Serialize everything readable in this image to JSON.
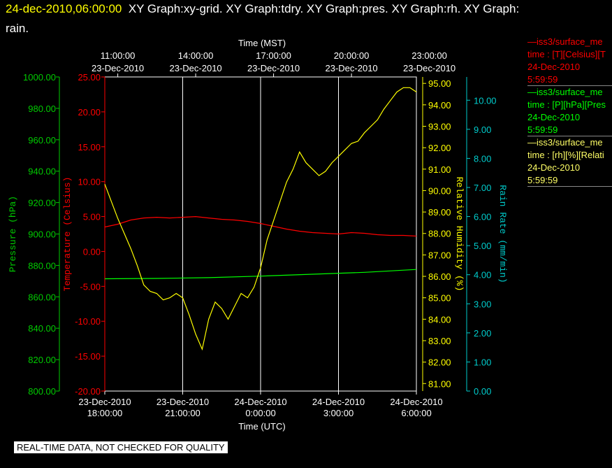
{
  "header": {
    "timestamp": "24-dec-2010,06:00:00",
    "graphs_line1": "XY Graph:xy-grid.  XY Graph:tdry.  XY Graph:pres.  XY Graph:rh.  XY Graph:",
    "graphs_line2": "rain."
  },
  "legend": [
    {
      "line1": "—iss3/surface_me",
      "line2": "time : [T][Celsius][T",
      "line3": "24-Dec-2010",
      "line4": "5:59:59",
      "color": "#ff0000"
    },
    {
      "line1": "—iss3/surface_me",
      "line2": "time : [P][hPa][Pres",
      "line3": "24-Dec-2010",
      "line4": "5:59:59",
      "color": "#00ff00"
    },
    {
      "line1": "—iss3/surface_me",
      "line2": "time : [rh][%][Relati",
      "line3": "24-Dec-2010",
      "line4": "5:59:59",
      "color": "#ffff00"
    }
  ],
  "footer_note": "REAL-TIME DATA, NOT CHECKED FOR QUALITY",
  "chart_data": {
    "type": "line",
    "title": "",
    "xlabel_top": "Time (MST)",
    "xlabel_bottom": "Time (UTC)",
    "x_unit": "hours since 23-Dec-2010 18:00 UTC",
    "xlim": [
      0,
      12
    ],
    "x_ticks_top": [
      {
        "x": 0.5,
        "time": "11:00:00",
        "date": "23-Dec-2010"
      },
      {
        "x": 3.5,
        "time": "14:00:00",
        "date": "23-Dec-2010"
      },
      {
        "x": 6.5,
        "time": "17:00:00",
        "date": "23-Dec-2010"
      },
      {
        "x": 9.5,
        "time": "20:00:00",
        "date": "23-Dec-2010"
      },
      {
        "x": 12.5,
        "time": "23:00:00",
        "date": "23-Dec-2010"
      }
    ],
    "x_ticks_bottom": [
      {
        "x": 0,
        "date": "23-Dec-2010",
        "time": "18:00:00"
      },
      {
        "x": 3,
        "date": "23-Dec-2010",
        "time": "21:00:00"
      },
      {
        "x": 6,
        "date": "24-Dec-2010",
        "time": "0:00:00"
      },
      {
        "x": 9,
        "date": "24-Dec-2010",
        "time": "3:00:00"
      },
      {
        "x": 12,
        "date": "24-Dec-2010",
        "time": "6:00:00"
      }
    ],
    "grid_x": [
      3,
      6,
      9
    ],
    "axes": [
      {
        "id": "pres",
        "label": "Pressure (hPa)",
        "color": "#00cc00",
        "range": [
          800,
          1000
        ],
        "ticks": [
          "800.00",
          "820.00",
          "840.00",
          "860.00",
          "880.00",
          "900.00",
          "920.00",
          "940.00",
          "960.00",
          "980.00",
          "1000.00"
        ]
      },
      {
        "id": "tdry",
        "label": "Temperature (Celsius)",
        "color": "#ff0000",
        "range": [
          -20,
          25
        ],
        "ticks": [
          "-20.00",
          "-15.00",
          "-10.00",
          "-5.00",
          "0.00",
          "5.00",
          "10.00",
          "15.00",
          "20.00",
          "25.00"
        ]
      },
      {
        "id": "rh",
        "label": "Relative Humidity (%)",
        "color": "#ffff00",
        "range": [
          80.65,
          95.3
        ],
        "ticks": [
          "81.00",
          "82.00",
          "83.00",
          "84.00",
          "85.00",
          "86.00",
          "87.00",
          "88.00",
          "89.00",
          "90.00",
          "91.00",
          "92.00",
          "93.00",
          "94.00",
          "95.00"
        ]
      },
      {
        "id": "rain",
        "label": "Rain Rate (mm/min)",
        "color": "#00cccc",
        "range": [
          0,
          10.8
        ],
        "ticks": [
          "0.00",
          "1.00",
          "2.00",
          "3.00",
          "4.00",
          "5.00",
          "6.00",
          "7.00",
          "8.00",
          "9.00",
          "10.00"
        ]
      }
    ],
    "series": [
      {
        "name": "Temperature",
        "axis": "tdry",
        "color": "#ff0000",
        "x": [
          0,
          0.5,
          1,
          1.5,
          2,
          2.5,
          3,
          3.5,
          4,
          4.5,
          5,
          5.5,
          6,
          6.5,
          7,
          7.5,
          8,
          8.5,
          9,
          9.5,
          10,
          10.5,
          11,
          11.5,
          12
        ],
        "y": [
          3.5,
          3.9,
          4.5,
          4.8,
          4.9,
          4.8,
          4.9,
          5.0,
          4.8,
          4.6,
          4.5,
          4.3,
          4.0,
          3.6,
          3.2,
          2.9,
          2.7,
          2.6,
          2.5,
          2.7,
          2.6,
          2.4,
          2.3,
          2.3,
          2.2
        ]
      },
      {
        "name": "Pressure",
        "axis": "pres",
        "color": "#00ff00",
        "x": [
          0,
          2,
          4,
          6,
          8,
          10,
          12
        ],
        "y": [
          871.5,
          871.7,
          872.2,
          873.2,
          874.4,
          875.6,
          877.4
        ]
      },
      {
        "name": "Relative Humidity",
        "axis": "rh",
        "color": "#ffff00",
        "x": [
          0,
          0.25,
          0.5,
          0.75,
          1.0,
          1.25,
          1.5,
          1.75,
          2.0,
          2.25,
          2.5,
          2.75,
          3.0,
          3.25,
          3.5,
          3.75,
          4.0,
          4.25,
          4.5,
          4.75,
          5.0,
          5.25,
          5.5,
          5.75,
          6.0,
          6.25,
          6.5,
          6.75,
          7.0,
          7.25,
          7.5,
          7.75,
          8.0,
          8.25,
          8.5,
          8.75,
          9.0,
          9.25,
          9.5,
          9.75,
          10.0,
          10.25,
          10.5,
          10.75,
          11.0,
          11.25,
          11.5,
          11.75,
          12.0
        ],
        "y": [
          90.3,
          89.5,
          88.7,
          88.0,
          87.3,
          86.5,
          85.6,
          85.3,
          85.2,
          84.9,
          85.0,
          85.2,
          85.0,
          84.2,
          83.3,
          82.6,
          84.0,
          84.8,
          84.5,
          84.0,
          84.6,
          85.2,
          85.0,
          85.5,
          86.4,
          87.7,
          88.6,
          89.5,
          90.4,
          91.0,
          91.8,
          91.3,
          91.0,
          90.7,
          90.9,
          91.3,
          91.6,
          91.9,
          92.2,
          92.3,
          92.7,
          93.0,
          93.3,
          93.8,
          94.2,
          94.6,
          94.8,
          94.8,
          94.6
        ]
      }
    ]
  }
}
